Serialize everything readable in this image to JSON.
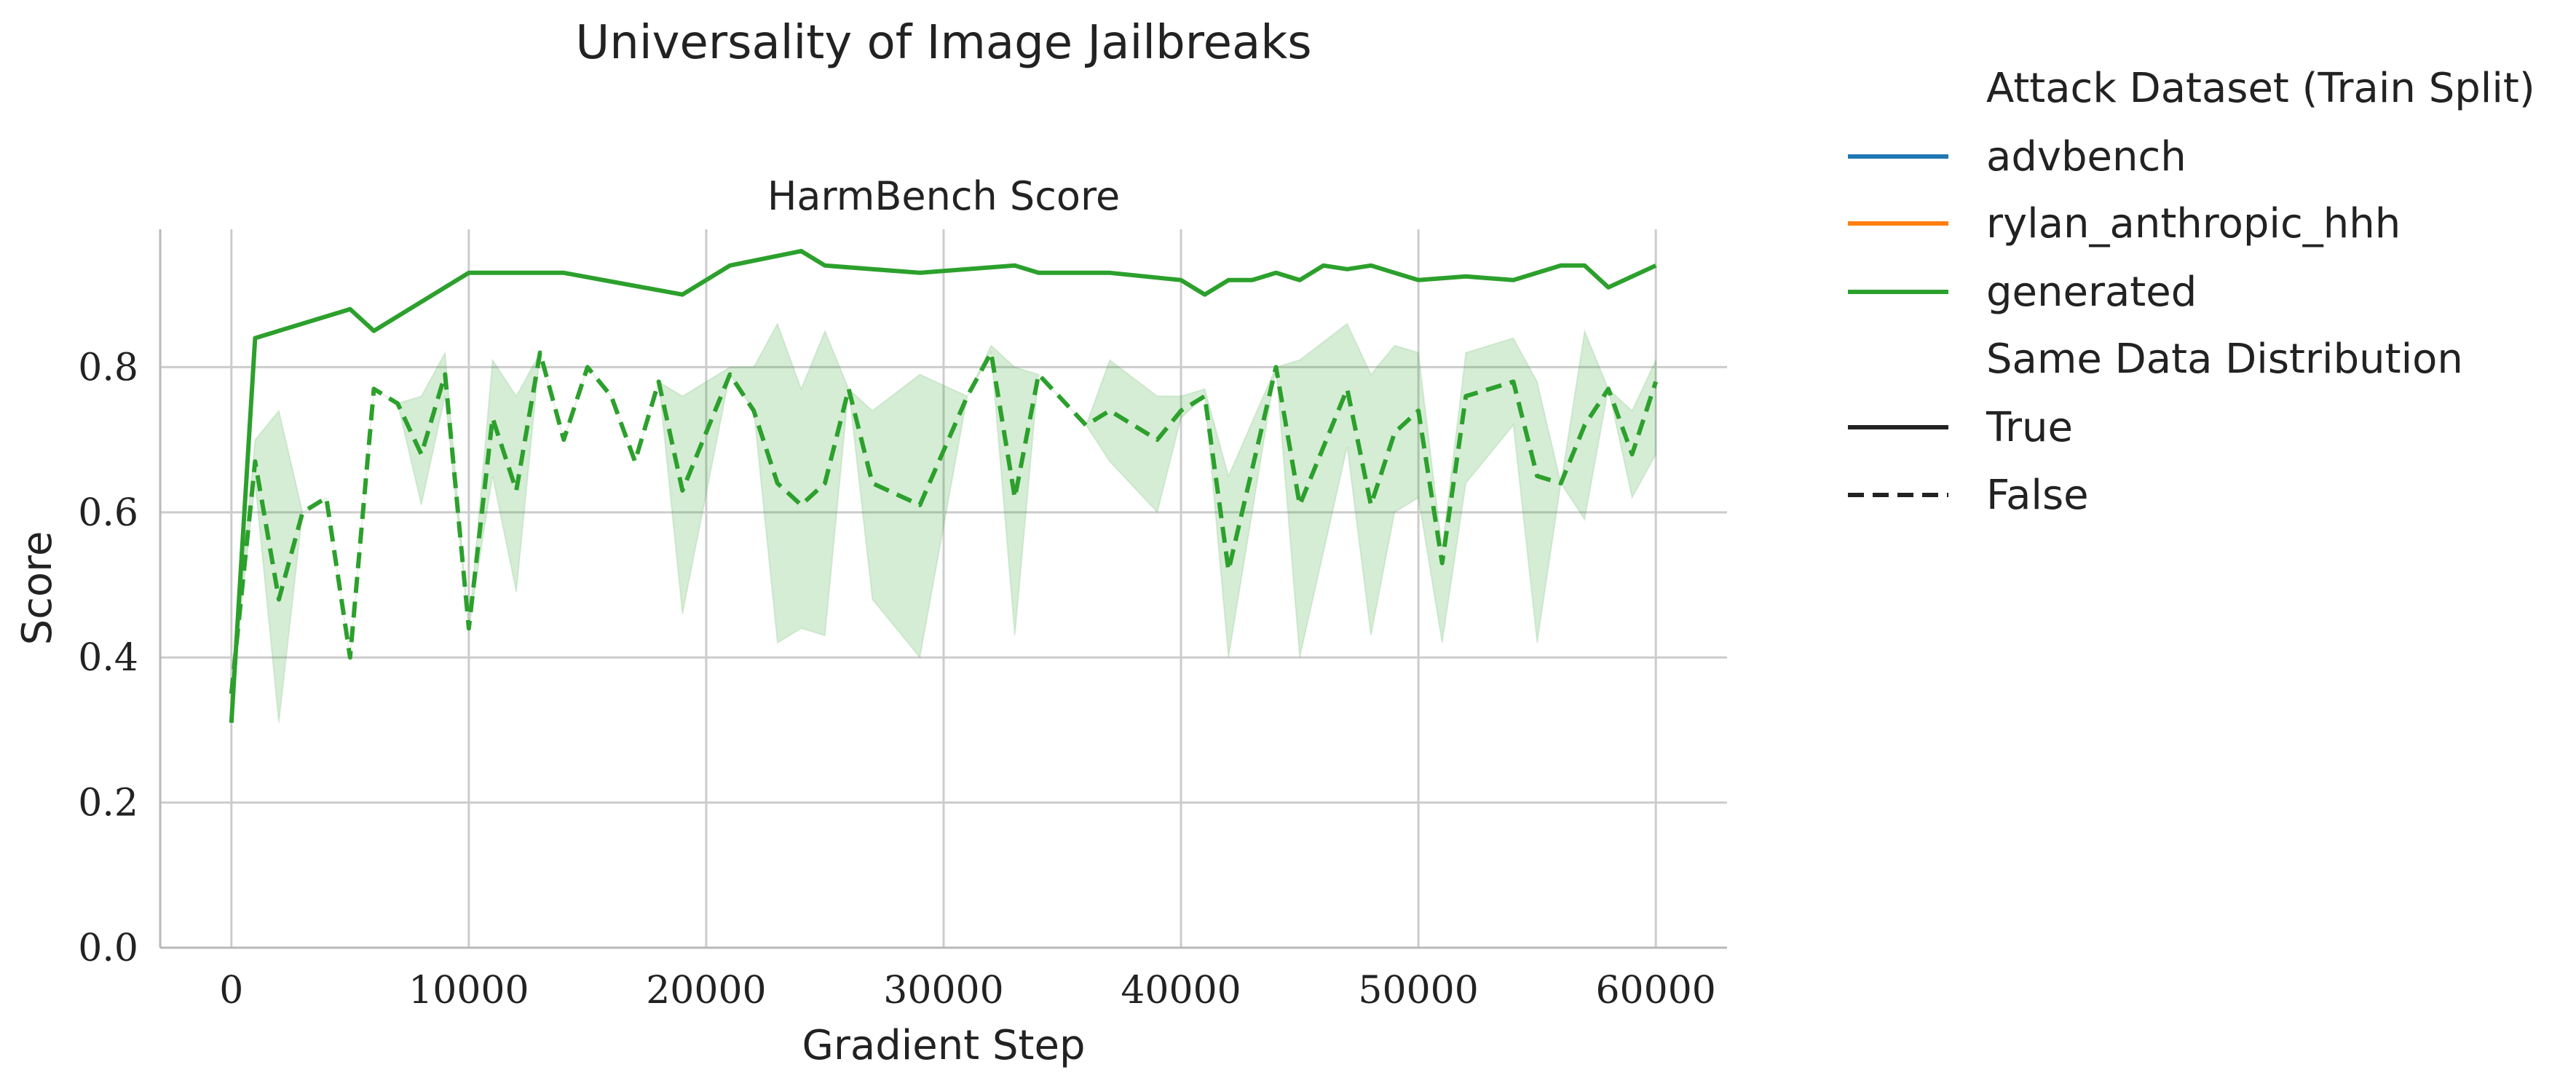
{
  "chart_data": {
    "type": "line",
    "suptitle": "Universality of Image Jailbreaks",
    "title": "HarmBench Score",
    "xlabel": "Gradient Step",
    "ylabel": "Score",
    "xlim": [
      -3000,
      63000
    ],
    "ylim": [
      0.0,
      0.99
    ],
    "xticks": [
      0,
      10000,
      20000,
      30000,
      40000,
      50000,
      60000
    ],
    "xtick_labels": [
      "0",
      "10000",
      "20000",
      "30000",
      "40000",
      "50000",
      "60000"
    ],
    "yticks": [
      0.0,
      0.2,
      0.4,
      0.6,
      0.8
    ],
    "ytick_labels": [
      "0.0",
      "0.2",
      "0.4",
      "0.6",
      "0.8"
    ],
    "grid": true,
    "legend": {
      "placement": "outside-right",
      "hue_title": "Attack Dataset (Train Split)",
      "hue_entries": [
        {
          "label": "advbench",
          "color": "#1f77b4"
        },
        {
          "label": "rylan_anthropic_hhh",
          "color": "#ff7f0e"
        },
        {
          "label": "generated",
          "color": "#2ca02c"
        }
      ],
      "style_title": "Same Data Distribution",
      "style_entries": [
        {
          "label": "True",
          "dash": "solid"
        },
        {
          "label": "False",
          "dash": "dashed"
        }
      ]
    },
    "series": [
      {
        "dataset": "generated",
        "same_distribution": "True",
        "color": "#2ca02c",
        "dash": "solid",
        "x": [
          0,
          1000,
          5000,
          6000,
          10000,
          14000,
          19000,
          21000,
          24000,
          25000,
          29000,
          33000,
          34000,
          37000,
          40000,
          41000,
          42000,
          43000,
          44000,
          45000,
          46000,
          47000,
          48000,
          50000,
          52000,
          54000,
          56000,
          57000,
          58000,
          60000
        ],
        "y": [
          0.31,
          0.84,
          0.88,
          0.85,
          0.93,
          0.93,
          0.9,
          0.94,
          0.96,
          0.94,
          0.93,
          0.94,
          0.93,
          0.93,
          0.92,
          0.9,
          0.92,
          0.92,
          0.93,
          0.92,
          0.94,
          0.935,
          0.94,
          0.92,
          0.925,
          0.92,
          0.94,
          0.94,
          0.91,
          0.94
        ]
      },
      {
        "dataset": "generated",
        "same_distribution": "False",
        "color": "#2ca02c",
        "dash": "dashed",
        "x": [
          0,
          1000,
          2000,
          3000,
          4000,
          5000,
          6000,
          7000,
          8000,
          9000,
          10000,
          11000,
          12000,
          13000,
          14000,
          15000,
          16000,
          17000,
          18000,
          19000,
          21000,
          22000,
          23000,
          24000,
          25000,
          26000,
          27000,
          29000,
          31000,
          32000,
          33000,
          34000,
          36000,
          37000,
          39000,
          40000,
          41000,
          42000,
          44000,
          45000,
          47000,
          48000,
          49000,
          50000,
          51000,
          52000,
          54000,
          55000,
          56000,
          57000,
          58000,
          59000,
          60000
        ],
        "y": [
          0.35,
          0.67,
          0.48,
          0.6,
          0.62,
          0.4,
          0.77,
          0.75,
          0.68,
          0.79,
          0.44,
          0.73,
          0.63,
          0.82,
          0.7,
          0.8,
          0.76,
          0.67,
          0.78,
          0.63,
          0.79,
          0.74,
          0.64,
          0.61,
          0.64,
          0.77,
          0.64,
          0.61,
          0.76,
          0.82,
          0.62,
          0.79,
          0.72,
          0.74,
          0.7,
          0.74,
          0.76,
          0.52,
          0.8,
          0.61,
          0.77,
          0.61,
          0.71,
          0.74,
          0.53,
          0.76,
          0.78,
          0.65,
          0.64,
          0.72,
          0.77,
          0.68,
          0.78
        ],
        "ci_lower": [
          0.35,
          0.64,
          0.31,
          0.6,
          0.62,
          0.4,
          0.77,
          0.75,
          0.61,
          0.76,
          0.44,
          0.65,
          0.49,
          0.82,
          0.7,
          0.8,
          0.76,
          0.67,
          0.78,
          0.46,
          0.79,
          0.74,
          0.42,
          0.44,
          0.43,
          0.77,
          0.48,
          0.4,
          0.76,
          0.82,
          0.43,
          0.79,
          0.72,
          0.67,
          0.6,
          0.73,
          0.76,
          0.4,
          0.8,
          0.4,
          0.69,
          0.43,
          0.6,
          0.62,
          0.42,
          0.64,
          0.72,
          0.42,
          0.64,
          0.59,
          0.77,
          0.62,
          0.68
        ],
        "ci_upper": [
          0.35,
          0.7,
          0.74,
          0.6,
          0.62,
          0.4,
          0.77,
          0.75,
          0.76,
          0.82,
          0.44,
          0.81,
          0.76,
          0.82,
          0.7,
          0.8,
          0.76,
          0.67,
          0.78,
          0.76,
          0.8,
          0.8,
          0.86,
          0.77,
          0.85,
          0.77,
          0.74,
          0.79,
          0.76,
          0.83,
          0.8,
          0.79,
          0.72,
          0.81,
          0.76,
          0.76,
          0.77,
          0.65,
          0.8,
          0.81,
          0.86,
          0.79,
          0.83,
          0.82,
          0.55,
          0.82,
          0.84,
          0.78,
          0.64,
          0.85,
          0.77,
          0.74,
          0.81
        ]
      }
    ]
  }
}
